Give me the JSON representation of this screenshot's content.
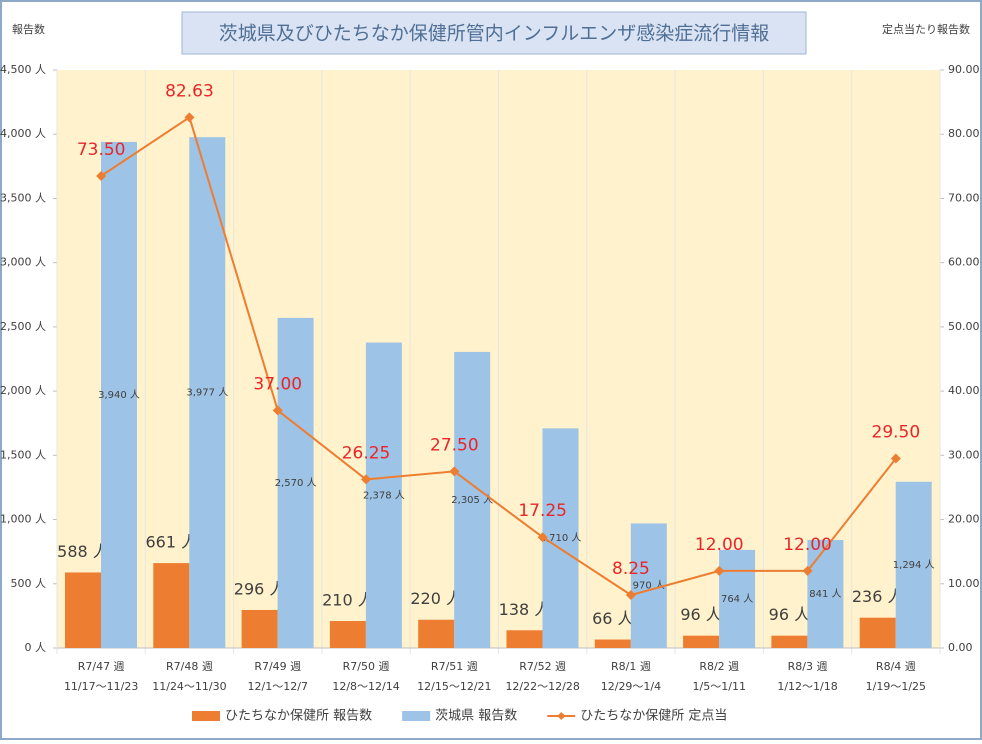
{
  "chart_data": {
    "type": "bar",
    "title": "茨城県及びひたちなか保健所管内インフルエンザ感染症流行情報",
    "y_label": "報告数",
    "y2_label": "定点当たり報告数",
    "categories": [
      "R7/47 週",
      "R7/48 週",
      "R7/49 週",
      "R7/50 週",
      "R7/51 週",
      "R7/52 週",
      "R8/1 週",
      "R8/2 週",
      "R8/3 週",
      "R8/4 週"
    ],
    "category_dates": [
      "11/17～11/23",
      "11/24～11/30",
      "12/1～12/7",
      "12/8～12/14",
      "12/15～12/21",
      "12/22～12/28",
      "12/29～1/4",
      "1/5～1/11",
      "1/12～1/18",
      "1/19～1/25"
    ],
    "series": [
      {
        "name": "ひたちなか保健所 報告数",
        "type": "bar",
        "color": "#ed7d31",
        "values": [
          588,
          661,
          296,
          210,
          220,
          138,
          66,
          96,
          96,
          236
        ],
        "value_labels": [
          "588 人",
          "661 人",
          "296 人",
          "210 人",
          "220 人",
          "138 人",
          "66 人",
          "96 人",
          "96 人",
          "236 人"
        ]
      },
      {
        "name": "茨城県 報告数",
        "type": "bar",
        "color": "#9dc3e6",
        "values": [
          3940,
          3977,
          2570,
          2378,
          2305,
          1710,
          970,
          764,
          841,
          1294
        ],
        "value_labels": [
          "3,940 人",
          "3,977 人",
          "2,570 人",
          "2,378 人",
          "2,305 人",
          "1,710 人",
          "970 人",
          "764 人",
          "841 人",
          "1,294 人"
        ]
      },
      {
        "name": "ひたちなか保健所 定点当",
        "type": "line",
        "axis": "y2",
        "color": "#ed7d31",
        "values": [
          73.5,
          82.63,
          37,
          26.25,
          27.5,
          17.25,
          8.25,
          12,
          12,
          29.5
        ],
        "value_labels": [
          "73.50",
          "82.63",
          "37.00",
          "26.25",
          "27.50",
          "17.25",
          "8.25",
          "12.00",
          "12.00",
          "29.50"
        ]
      }
    ],
    "ylim": [
      0,
      4500
    ],
    "yticks": [
      {
        "value": 0,
        "label": "0 人"
      },
      {
        "value": 500,
        "label": "500 人"
      },
      {
        "value": 1000,
        "label": "1,000 人"
      },
      {
        "value": 1500,
        "label": "1,500 人"
      },
      {
        "value": 2000,
        "label": "2,000 人"
      },
      {
        "value": 2500,
        "label": "2,500 人"
      },
      {
        "value": 3000,
        "label": "3,000 人"
      },
      {
        "value": 3500,
        "label": "3,500 人"
      },
      {
        "value": 4000,
        "label": "4,000 人"
      },
      {
        "value": 4500,
        "label": "4,500 人"
      }
    ],
    "y2lim": [
      0,
      90
    ],
    "y2ticks": [
      {
        "value": 0,
        "label": "0.00"
      },
      {
        "value": 10,
        "label": "10.00"
      },
      {
        "value": 20,
        "label": "20.00"
      },
      {
        "value": 30,
        "label": "30.00"
      },
      {
        "value": 40,
        "label": "40.00"
      },
      {
        "value": 50,
        "label": "50.00"
      },
      {
        "value": 60,
        "label": "60.00"
      },
      {
        "value": 70,
        "label": "70.00"
      },
      {
        "value": 80,
        "label": "80.00"
      },
      {
        "value": 90,
        "label": "90.00"
      }
    ],
    "line_label_color": "#e8262a",
    "plot_background": "#fff2cc"
  }
}
